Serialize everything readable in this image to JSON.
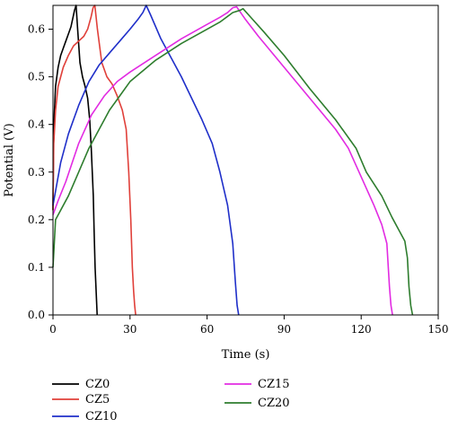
{
  "chart_data": {
    "type": "line",
    "title": "",
    "xlabel": "Time (s)",
    "ylabel": "Potential (V)",
    "xlim": [
      0,
      150
    ],
    "ylim": [
      0,
      0.65
    ],
    "xticks": [
      0,
      30,
      60,
      90,
      120,
      150
    ],
    "xtick_labels": [
      "0",
      "30",
      "60",
      "90",
      "120",
      "150"
    ],
    "yticks": [
      0.0,
      0.1,
      0.2,
      0.3,
      0.4,
      0.5,
      0.6
    ],
    "ytick_labels": [
      "0.0",
      "0.1",
      "0.2",
      "0.3",
      "0.4",
      "0.5",
      "0.6"
    ],
    "grid": false,
    "legend_position": "below",
    "series": [
      {
        "name": "CZ0",
        "color": "#000000",
        "x": [
          0,
          0.2,
          0.5,
          1,
          2,
          3,
          4,
          5,
          6,
          7,
          7.8,
          8.4,
          9.0,
          9.6,
          10.5,
          11.5,
          12.5,
          13.5,
          14.3,
          14.9,
          15.3,
          15.7,
          16.0,
          16.4,
          16.8,
          17.2
        ],
        "y": [
          0.22,
          0.35,
          0.42,
          0.48,
          0.52,
          0.545,
          0.56,
          0.575,
          0.59,
          0.605,
          0.625,
          0.64,
          0.65,
          0.6,
          0.53,
          0.5,
          0.48,
          0.455,
          0.41,
          0.35,
          0.3,
          0.25,
          0.18,
          0.1,
          0.05,
          0.0
        ]
      },
      {
        "name": "CZ5",
        "color": "#e0403a",
        "x": [
          0,
          0.3,
          1,
          2,
          4,
          6,
          8,
          10,
          12,
          13.5,
          14.8,
          15.6,
          16.3,
          17.3,
          19,
          21,
          23,
          25,
          27,
          28.5,
          29.5,
          30.3,
          30.9,
          31.4,
          31.8,
          32.2
        ],
        "y": [
          0.22,
          0.36,
          0.43,
          0.48,
          0.52,
          0.545,
          0.565,
          0.575,
          0.585,
          0.6,
          0.625,
          0.645,
          0.65,
          0.6,
          0.53,
          0.5,
          0.485,
          0.46,
          0.43,
          0.39,
          0.3,
          0.2,
          0.1,
          0.05,
          0.02,
          0.0
        ]
      },
      {
        "name": "CZ10",
        "color": "#1f2fc9",
        "x": [
          0,
          1,
          3,
          6,
          10,
          14,
          18,
          22,
          26,
          30,
          33,
          35,
          36.3,
          38,
          42,
          46,
          50,
          54,
          58,
          62,
          65,
          68,
          70,
          71,
          71.7,
          72.3
        ],
        "y": [
          0.23,
          0.26,
          0.32,
          0.38,
          0.44,
          0.49,
          0.525,
          0.55,
          0.575,
          0.6,
          0.62,
          0.635,
          0.65,
          0.63,
          0.58,
          0.54,
          0.5,
          0.455,
          0.41,
          0.36,
          0.3,
          0.23,
          0.15,
          0.07,
          0.02,
          0.0
        ]
      },
      {
        "name": "CZ15",
        "color": "#e22be2",
        "x": [
          0,
          2,
          5,
          10,
          15,
          20,
          25,
          30,
          40,
          50,
          60,
          65,
          68,
          70,
          71.5,
          75,
          80,
          90,
          100,
          110,
          115,
          120,
          125,
          128,
          130,
          131,
          131.6,
          132.2
        ],
        "y": [
          0.21,
          0.24,
          0.28,
          0.36,
          0.42,
          0.46,
          0.49,
          0.51,
          0.545,
          0.58,
          0.61,
          0.625,
          0.635,
          0.645,
          0.647,
          0.62,
          0.585,
          0.52,
          0.455,
          0.39,
          0.35,
          0.29,
          0.23,
          0.19,
          0.15,
          0.06,
          0.02,
          0.0
        ]
      },
      {
        "name": "CZ20",
        "color": "#2e7d2e",
        "x": [
          0,
          1,
          3,
          6,
          10,
          14,
          18,
          22,
          26,
          30,
          40,
          50,
          60,
          65,
          70,
          73,
          74,
          77,
          82,
          90,
          100,
          110,
          118,
          122,
          128,
          132,
          135,
          137,
          138,
          138.6,
          139.3,
          140
        ],
        "y": [
          0.1,
          0.2,
          0.22,
          0.25,
          0.3,
          0.35,
          0.39,
          0.43,
          0.46,
          0.49,
          0.535,
          0.57,
          0.6,
          0.615,
          0.635,
          0.64,
          0.643,
          0.625,
          0.595,
          0.545,
          0.475,
          0.41,
          0.35,
          0.3,
          0.25,
          0.205,
          0.175,
          0.155,
          0.12,
          0.06,
          0.02,
          0.0
        ]
      }
    ]
  }
}
